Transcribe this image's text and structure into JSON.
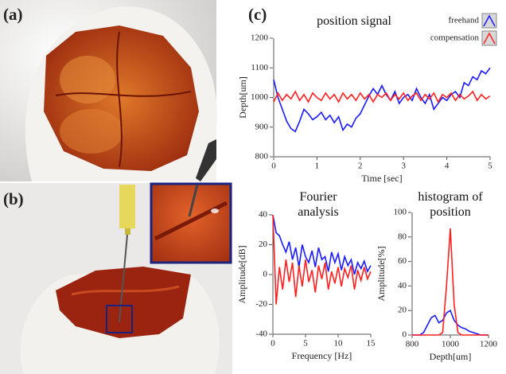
{
  "panel_labels": [
    "(a)",
    "(b)",
    "(c)"
  ],
  "chart_data": [
    {
      "type": "line",
      "title": "position signal",
      "x_label": "Time [sec]",
      "y_label": "Depth[um]",
      "x": [
        0,
        0.1,
        0.2,
        0.3,
        0.4,
        0.5,
        0.6,
        0.7,
        0.8,
        0.9,
        1.0,
        1.1,
        1.2,
        1.3,
        1.4,
        1.5,
        1.6,
        1.7,
        1.8,
        1.9,
        2.0,
        2.1,
        2.2,
        2.3,
        2.4,
        2.5,
        2.6,
        2.7,
        2.8,
        2.9,
        3.0,
        3.1,
        3.2,
        3.3,
        3.4,
        3.5,
        3.6,
        3.7,
        3.8,
        3.9,
        4.0,
        4.1,
        4.2,
        4.3,
        4.4,
        4.5,
        4.6,
        4.7,
        4.8,
        4.9,
        5.0
      ],
      "series": [
        {
          "name": "freehand",
          "color": "#1a1aff",
          "values": [
            1060,
            1000,
            960,
            920,
            895,
            885,
            920,
            960,
            945,
            925,
            935,
            950,
            925,
            940,
            915,
            935,
            890,
            910,
            900,
            930,
            945,
            975,
            1005,
            1030,
            1010,
            1040,
            1010,
            990,
            1020,
            980,
            1000,
            1010,
            990,
            1030,
            1000,
            980,
            1010,
            960,
            980,
            1000,
            990,
            1010,
            1020,
            1000,
            1050,
            1040,
            1070,
            1060,
            1090,
            1080,
            1100
          ]
        },
        {
          "name": "compensation",
          "color": "#ff2020",
          "values": [
            985,
            1015,
            990,
            1010,
            995,
            1020,
            990,
            1010,
            985,
            1015,
            1000,
            990,
            1015,
            995,
            1010,
            985,
            1015,
            995,
            1010,
            990,
            1015,
            995,
            1010,
            985,
            1010,
            1000,
            1015,
            990,
            1010,
            995,
            1015,
            990,
            1005,
            1015,
            990,
            1010,
            995,
            1015,
            985,
            1010,
            1000,
            1015,
            990,
            1010,
            995,
            1005,
            1020,
            990,
            1010,
            995,
            1005
          ]
        }
      ],
      "xlim": [
        0,
        5
      ],
      "xticks": [
        0,
        1,
        2,
        3,
        4,
        5
      ],
      "ylim": [
        800,
        1200
      ],
      "yticks": [
        800,
        900,
        1000,
        1100,
        1200
      ],
      "legend": "upper right"
    },
    {
      "type": "line",
      "title": "Fourier analysis",
      "x_label": "Frequency [Hz]",
      "y_label": "Amplitude[dB]",
      "x": [
        0,
        0.5,
        1,
        1.5,
        2,
        2.5,
        3,
        3.5,
        4,
        4.5,
        5,
        5.5,
        6,
        6.5,
        7,
        7.5,
        8,
        8.5,
        9,
        9.5,
        10,
        10.5,
        11,
        11.5,
        12,
        12.5,
        13,
        13.5,
        14,
        14.5,
        15
      ],
      "series": [
        {
          "name": "freehand",
          "color": "#1a1aff",
          "values": [
            40,
            28,
            26,
            20,
            15,
            22,
            10,
            18,
            5,
            20,
            12,
            8,
            16,
            5,
            18,
            10,
            12,
            2,
            15,
            8,
            14,
            3,
            12,
            6,
            10,
            0,
            8,
            4,
            9,
            2,
            6
          ]
        },
        {
          "name": "compensation",
          "color": "#ff2020",
          "values": [
            40,
            -20,
            5,
            -10,
            10,
            -5,
            8,
            -15,
            6,
            -8,
            10,
            -5,
            3,
            -12,
            6,
            -3,
            8,
            -10,
            2,
            -6,
            5,
            -8,
            4,
            -2,
            6,
            -10,
            3,
            -4,
            5,
            -3,
            2
          ]
        }
      ],
      "xlim": [
        0,
        15
      ],
      "xticks": [
        0,
        5,
        10,
        15
      ],
      "ylim": [
        -40,
        40
      ],
      "yticks": [
        -40,
        -20,
        0,
        20,
        40
      ]
    },
    {
      "type": "line",
      "title": "histogram of position",
      "x_label": "Depth[um]",
      "y_label": "Amplitude[%]",
      "x": [
        800,
        820,
        840,
        860,
        880,
        900,
        920,
        940,
        960,
        980,
        1000,
        1020,
        1040,
        1060,
        1080,
        1100,
        1120,
        1140,
        1160,
        1180,
        1200
      ],
      "series": [
        {
          "name": "freehand",
          "color": "#1a1aff",
          "values": [
            0,
            0,
            0,
            2,
            8,
            14,
            16,
            10,
            12,
            18,
            20,
            12,
            8,
            6,
            5,
            3,
            2,
            1,
            0,
            0,
            0
          ]
        },
        {
          "name": "compensation",
          "color": "#ff2020",
          "values": [
            0,
            0,
            0,
            0,
            0,
            0,
            0,
            0,
            2,
            40,
            87,
            25,
            2,
            0,
            0,
            0,
            0,
            0,
            0,
            0,
            0
          ]
        }
      ],
      "xlim": [
        800,
        1200
      ],
      "xticks": [
        800,
        1000,
        1200
      ],
      "ylim": [
        0,
        100
      ],
      "yticks": [
        0,
        20,
        40,
        60,
        80,
        100
      ]
    }
  ]
}
